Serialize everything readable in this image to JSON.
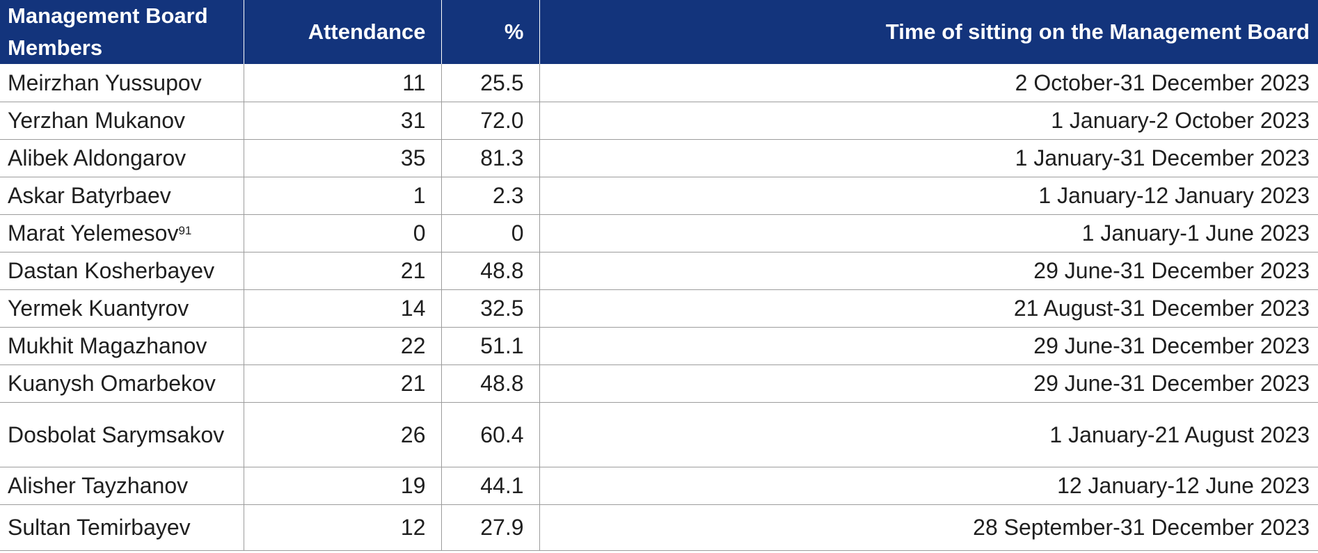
{
  "table": {
    "headers": {
      "members": "Management Board Members",
      "attendance": "Attendance",
      "percent": "%",
      "time": "Time of sitting on the Management Board"
    },
    "rows": [
      {
        "name": "Meirzhan Yussupov",
        "footnote": "",
        "attendance": "11",
        "percent": "25.5",
        "time": "2 October-31 December 2023"
      },
      {
        "name": "Yerzhan Mukanov",
        "footnote": "",
        "attendance": "31",
        "percent": "72.0",
        "time": "1 January-2 October 2023"
      },
      {
        "name": "Alibek Aldongarov",
        "footnote": "",
        "attendance": "35",
        "percent": "81.3",
        "time": "1 January-31 December 2023"
      },
      {
        "name": "Askar Batyrbaev",
        "footnote": "",
        "attendance": "1",
        "percent": "2.3",
        "time": "1 January-12 January 2023"
      },
      {
        "name": "Marat Yelemesov",
        "footnote": "91",
        "attendance": "0",
        "percent": "0",
        "time": "1 January-1 June 2023"
      },
      {
        "name": "Dastan Kosherbayev",
        "footnote": "",
        "attendance": "21",
        "percent": "48.8",
        "time": "29 June-31 December 2023"
      },
      {
        "name": "Yermek Kuantyrov",
        "footnote": "",
        "attendance": "14",
        "percent": "32.5",
        "time": "21 August-31 December 2023"
      },
      {
        "name": "Mukhit Magazhanov",
        "footnote": "",
        "attendance": "22",
        "percent": "51.1",
        "time": "29 June-31 December 2023"
      },
      {
        "name": "Kuanysh Omarbekov",
        "footnote": "",
        "attendance": "21",
        "percent": "48.8",
        "time": "29 June-31 December 2023"
      },
      {
        "name": "Dosbolat Sarymsakov",
        "footnote": "",
        "attendance": "26",
        "percent": "60.4",
        "time": "1 January-21 August 2023"
      },
      {
        "name": "Alisher Tayzhanov",
        "footnote": "",
        "attendance": "19",
        "percent": "44.1",
        "time": "12 January-12 June 2023"
      },
      {
        "name": "Sultan Temirbayev",
        "footnote": "",
        "attendance": "12",
        "percent": "27.9",
        "time": "28 September-31 December 2023"
      }
    ]
  },
  "colors": {
    "header_background": "#13347c",
    "header_text": "#ffffff",
    "grid_lines": "#9c9c9c",
    "body_text": "#1f1f1f"
  }
}
